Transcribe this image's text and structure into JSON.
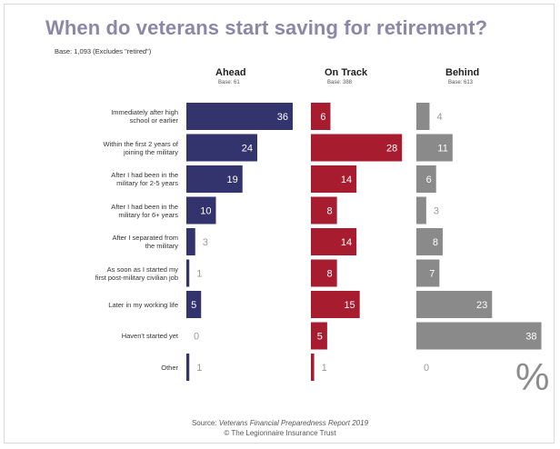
{
  "chart_data": {
    "type": "bar",
    "title": "When do veterans start saving for retirement?",
    "subtitle": "Base: 1,093 (Excludes \"retired\")",
    "categories": [
      [
        "Immediately after high",
        "school or earlier"
      ],
      [
        "Within the first 2  years of",
        "joining the military"
      ],
      [
        "After I had been in the",
        "military for 2-5 years"
      ],
      [
        "After I had been in the",
        "military for 6+ years"
      ],
      [
        "After I separated from",
        "the military"
      ],
      [
        "As soon as I started my",
        "first post-military civilian job"
      ],
      [
        "Later in my working life"
      ],
      [
        "Haven't started yet"
      ],
      [
        "Other"
      ]
    ],
    "series": [
      {
        "name": "Ahead",
        "base": "Base: 61",
        "color": "#33336e",
        "values": [
          36,
          24,
          19,
          10,
          3,
          1,
          5,
          0,
          1
        ]
      },
      {
        "name": "On Track",
        "base": "Base: 388",
        "color": "#a81c30",
        "values": [
          6,
          28,
          14,
          8,
          14,
          8,
          15,
          5,
          1
        ]
      },
      {
        "name": "Behind",
        "base": "Base: 613",
        "color": "#8a8a8a",
        "values": [
          4,
          11,
          6,
          3,
          8,
          7,
          23,
          38,
          0
        ]
      }
    ],
    "unit_symbol": "%",
    "source_prefix": "Source:",
    "source_title": "Veterans Financial Preparedness Report 2019",
    "copyright": "© The Legionnaire Insurance Trust",
    "grid": false,
    "legend": "none"
  }
}
